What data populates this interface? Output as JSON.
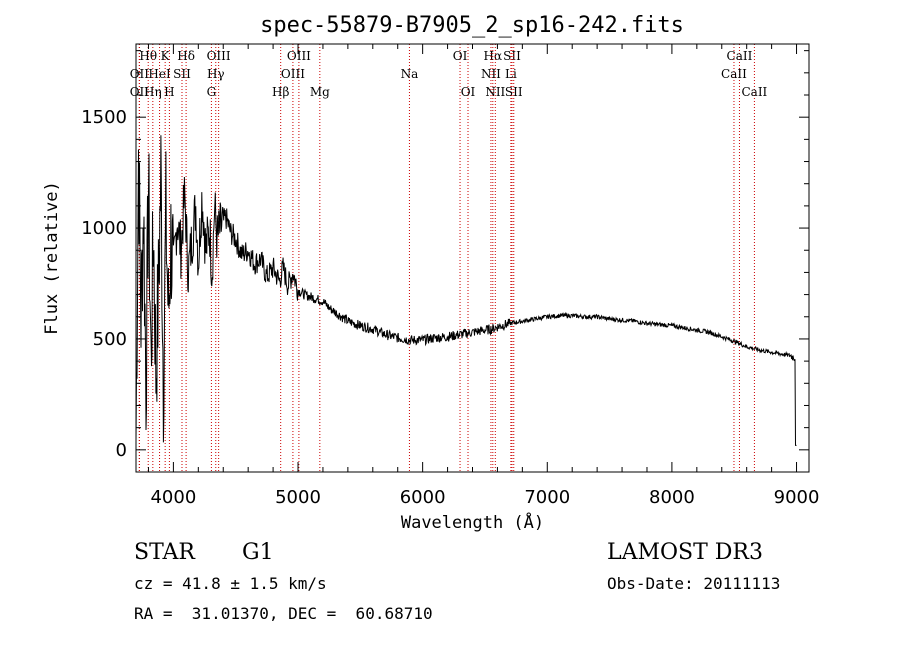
{
  "chart_data": {
    "type": "line",
    "title": "spec-55879-B7905_2_sp16-242.fits",
    "xlabel": "Wavelength (Å)",
    "ylabel": "Flux (relative)",
    "xlim": [
      3700,
      9100
    ],
    "ylim": [
      -100,
      1830
    ],
    "xticks": [
      4000,
      5000,
      6000,
      7000,
      8000,
      9000
    ],
    "xtick_labels": [
      "4000",
      "5000",
      "6000",
      "7000",
      "8000",
      "9000"
    ],
    "yticks": [
      0,
      500,
      1000,
      1500
    ],
    "ytick_labels": [
      "0",
      "500",
      "1000",
      "1500"
    ],
    "series": [
      {
        "name": "spectrum",
        "x": [
          3700,
          3720,
          3740,
          3760,
          3780,
          3800,
          3820,
          3840,
          3860,
          3880,
          3900,
          3920,
          3940,
          3960,
          3980,
          4000,
          4030,
          4060,
          4090,
          4120,
          4150,
          4180,
          4200,
          4230,
          4260,
          4290,
          4310,
          4330,
          4350,
          4380,
          4420,
          4460,
          4500,
          4550,
          4600,
          4650,
          4700,
          4750,
          4800,
          4850,
          4880,
          4920,
          4960,
          5000,
          5050,
          5100,
          5150,
          5200,
          5250,
          5300,
          5400,
          5500,
          5600,
          5700,
          5800,
          5900,
          6000,
          6100,
          6200,
          6300,
          6400,
          6500,
          6560,
          6600,
          6700,
          6800,
          6900,
          7000,
          7100,
          7200,
          7300,
          7400,
          7500,
          7600,
          7700,
          7800,
          7900,
          8000,
          8100,
          8200,
          8300,
          8400,
          8500,
          8600,
          8700,
          8800,
          8900,
          8950,
          8990,
          9000
        ],
        "y": [
          50,
          1350,
          600,
          1100,
          300,
          1200,
          400,
          1000,
          350,
          700,
          1250,
          300,
          1050,
          600,
          950,
          800,
          1050,
          900,
          1150,
          800,
          950,
          1100,
          850,
          1150,
          900,
          1000,
          800,
          1100,
          950,
          1000,
          1050,
          980,
          950,
          880,
          900,
          840,
          860,
          780,
          820,
          760,
          820,
          740,
          800,
          720,
          700,
          690,
          680,
          670,
          640,
          620,
          580,
          560,
          545,
          520,
          505,
          495,
          495,
          505,
          510,
          520,
          530,
          540,
          545,
          555,
          570,
          580,
          590,
          600,
          605,
          605,
          600,
          600,
          590,
          585,
          580,
          570,
          565,
          560,
          550,
          540,
          530,
          510,
          490,
          465,
          450,
          440,
          430,
          425,
          415,
          20
        ]
      }
    ],
    "lines": [
      {
        "name": "Hθ",
        "wave": 3798,
        "row": 0
      },
      {
        "name": "OII",
        "wave": 3727,
        "row": 1
      },
      {
        "name": "OII",
        "wave": 3727,
        "row": 2
      },
      {
        "name": "HeI",
        "wave": 3889,
        "row": 1
      },
      {
        "name": "Hη",
        "wave": 3835,
        "row": 2
      },
      {
        "name": "K",
        "wave": 3934,
        "row": 0
      },
      {
        "name": "SII",
        "wave": 4069,
        "row": 1
      },
      {
        "name": "H",
        "wave": 3968,
        "row": 2
      },
      {
        "name": "Hδ",
        "wave": 4102,
        "row": 0
      },
      {
        "name": "OIII",
        "wave": 4363,
        "row": 0
      },
      {
        "name": "Hγ",
        "wave": 4340,
        "row": 1
      },
      {
        "name": "G",
        "wave": 4305,
        "row": 2
      },
      {
        "name": "Hβ",
        "wave": 4861,
        "row": 2
      },
      {
        "name": "OIII",
        "wave": 5007,
        "row": 0
      },
      {
        "name": "OIII",
        "wave": 4959,
        "row": 1
      },
      {
        "name": "Mg",
        "wave": 5175,
        "row": 2
      },
      {
        "name": "Na",
        "wave": 5894,
        "row": 1
      },
      {
        "name": "OI",
        "wave": 6300,
        "row": 0
      },
      {
        "name": "OI",
        "wave": 6364,
        "row": 2
      },
      {
        "name": "Hα",
        "wave": 6563,
        "row": 0
      },
      {
        "name": "NII",
        "wave": 6548,
        "row": 1
      },
      {
        "name": "NII",
        "wave": 6583,
        "row": 2
      },
      {
        "name": "SII",
        "wave": 6717,
        "row": 0
      },
      {
        "name": "Li",
        "wave": 6708,
        "row": 1
      },
      {
        "name": "SII",
        "wave": 6731,
        "row": 2
      },
      {
        "name": "CaII",
        "wave": 8542,
        "row": 0
      },
      {
        "name": "CaII",
        "wave": 8498,
        "row": 1
      },
      {
        "name": "CaII",
        "wave": 8662,
        "row": 2
      }
    ]
  },
  "info": {
    "object_class": "STAR",
    "subclass": "G1",
    "survey": "LAMOST DR3",
    "cz": "cz = 41.8 ± 1.5 km/s",
    "obs_date": "Obs-Date: 20111113",
    "coords": "RA =  31.01370, DEC =  60.68710"
  },
  "colors": {
    "spectrum": "#000000",
    "line_marker": "#cc0000",
    "axis": "#000000"
  }
}
